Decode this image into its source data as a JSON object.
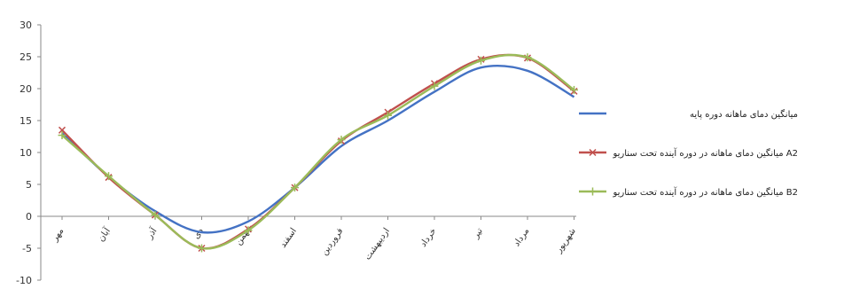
{
  "chart_data": {
    "type": "line",
    "categories": [
      "مهر",
      "آبان",
      "آذر",
      "دی",
      "بهمن",
      "اسفند",
      "فروردین",
      "اردیبهشت",
      "خرداد",
      "تیر",
      "مرداد",
      "شهریور"
    ],
    "ylim": [
      -10,
      30
    ],
    "yticks": [
      -10,
      -5,
      0,
      5,
      10,
      15,
      20,
      25,
      30
    ],
    "grid": false,
    "legend_position": "right",
    "series": [
      {
        "name": "میانگین دمای ماهانه دوره پایه",
        "color": "#4472c4",
        "marker": "none",
        "values": [
          13.0,
          6.2,
          0.8,
          -2.5,
          -0.8,
          4.5,
          11.0,
          15.0,
          19.5,
          23.3,
          22.8,
          18.7
        ]
      },
      {
        "name": "میانگین دمای ماهانه در دوره آینده تحت سناریو A2",
        "color": "#c0504d",
        "marker": "x",
        "values": [
          13.5,
          6.1,
          0.2,
          -5.0,
          -2.0,
          4.5,
          11.8,
          16.3,
          20.8,
          24.6,
          24.8,
          19.6
        ]
      },
      {
        "name": "میانگین دمای ماهانه در دوره آینده تحت سناریو B2",
        "color": "#9bbb59",
        "marker": "plus",
        "values": [
          12.7,
          6.3,
          0.2,
          -5.0,
          -2.2,
          4.5,
          12.0,
          15.8,
          20.4,
          24.4,
          24.9,
          19.8
        ]
      }
    ]
  }
}
